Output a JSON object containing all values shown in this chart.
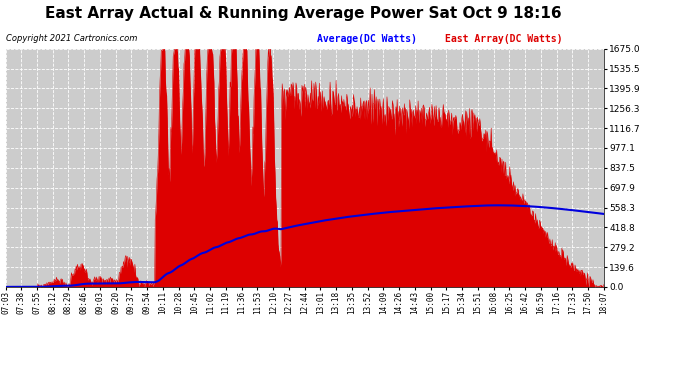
{
  "title": "East Array Actual & Running Average Power Sat Oct 9 18:16",
  "copyright": "Copyright 2021 Cartronics.com",
  "legend_average": "Average(DC Watts)",
  "legend_east": "East Array(DC Watts)",
  "yticks": [
    0.0,
    139.6,
    279.2,
    418.8,
    558.3,
    697.9,
    837.5,
    977.1,
    1116.7,
    1256.3,
    1395.9,
    1535.5,
    1675.0
  ],
  "ymax": 1675.0,
  "ymin": 0.0,
  "xtick_labels": [
    "07:03",
    "07:38",
    "07:55",
    "08:12",
    "08:29",
    "08:46",
    "09:03",
    "09:20",
    "09:37",
    "09:54",
    "10:11",
    "10:28",
    "10:45",
    "11:02",
    "11:19",
    "11:36",
    "11:53",
    "12:10",
    "12:27",
    "12:44",
    "13:01",
    "13:18",
    "13:35",
    "13:52",
    "14:09",
    "14:26",
    "14:43",
    "15:00",
    "15:17",
    "15:34",
    "15:51",
    "16:08",
    "16:25",
    "16:42",
    "16:59",
    "17:16",
    "17:33",
    "17:50",
    "18:07"
  ],
  "background_color": "#ffffff",
  "plot_bg_color": "#cccccc",
  "grid_color": "#ffffff",
  "red_fill_color": "#dd0000",
  "blue_line_color": "#0000dd",
  "title_fontsize": 11,
  "copyright_fontsize": 6,
  "legend_fontsize": 7,
  "legend_average_color": "#0000ff",
  "legend_east_color": "#dd0000",
  "tick_fontsize": 5.5,
  "ytick_fontsize": 6.5
}
